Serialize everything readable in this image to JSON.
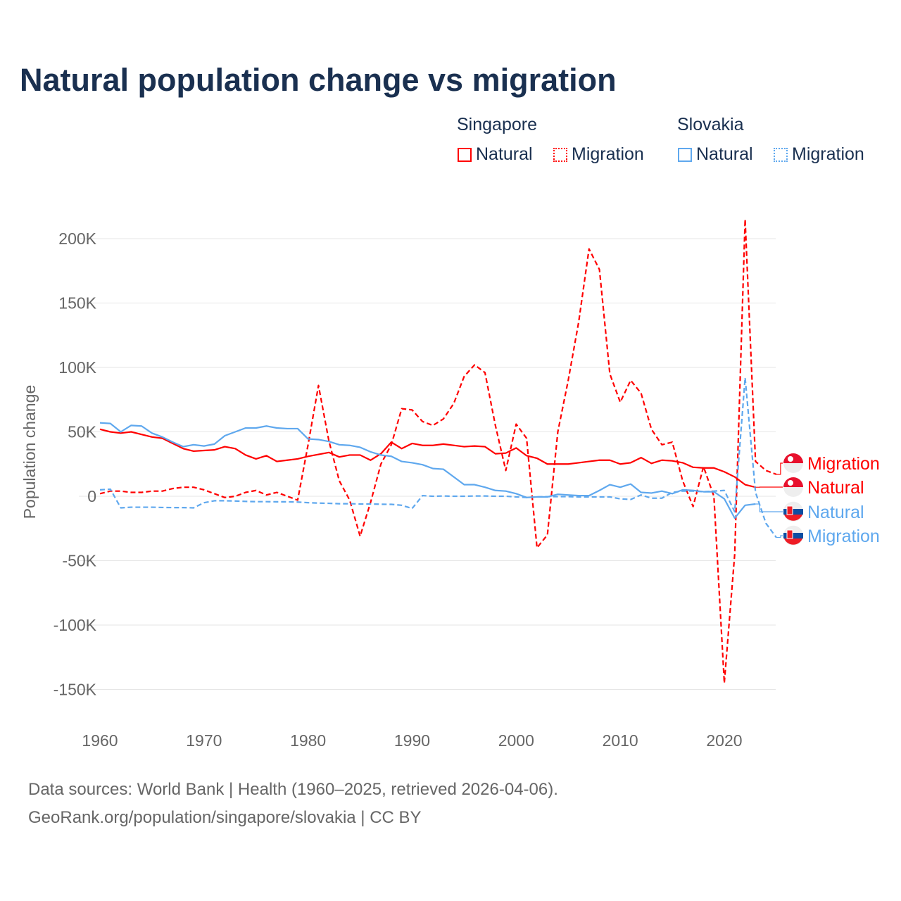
{
  "title": "Natural population change vs migration",
  "legend": {
    "groups": [
      {
        "name": "Singapore",
        "items": [
          "Natural",
          "Migration"
        ]
      },
      {
        "name": "Slovakia",
        "items": [
          "Natural",
          "Migration"
        ]
      }
    ]
  },
  "colors": {
    "singapore": "#ff0000",
    "slovakia": "#5fa8ee"
  },
  "footer": {
    "line1": "Data sources: World Bank | Health (1960–2025, retrieved 2026-04-06).",
    "line2": "GeoRank.org/population/singapore/slovakia | CC BY"
  },
  "chart_data": {
    "type": "line",
    "title": "Natural population change vs migration",
    "ylabel": "Population change",
    "xlabel": "",
    "xlim": [
      1960,
      2025
    ],
    "ylim": [
      -170000,
      220000
    ],
    "x_ticks": [
      1960,
      1970,
      1980,
      1990,
      2000,
      2010,
      2020
    ],
    "x_tick_labels": [
      "1960",
      "1970",
      "1980",
      "1990",
      "2000",
      "2010",
      "2020"
    ],
    "y_ticks": [
      -150000,
      -100000,
      -50000,
      0,
      50000,
      100000,
      150000,
      200000
    ],
    "y_tick_labels": [
      "-150K",
      "-100K",
      "-50K",
      "0",
      "50K",
      "100K",
      "150K",
      "200K"
    ],
    "grid": true,
    "start_year": 1960,
    "series": [
      {
        "name": "Singapore Natural",
        "end_label": "Migration_skip",
        "label": "Natural",
        "country": "singapore",
        "dashed": false,
        "values": [
          52,
          50,
          49,
          50,
          48,
          46,
          45,
          41,
          37,
          35,
          35.5,
          36,
          38.5,
          37,
          32,
          29,
          31.5,
          27,
          28,
          29,
          31,
          32.5,
          34,
          30.5,
          32,
          32,
          28,
          33,
          42,
          37,
          41,
          39.5,
          39.5,
          40.5,
          39.5,
          38.5,
          39,
          38.5,
          33,
          33.5,
          37.5,
          31.5,
          29.5,
          25,
          25,
          25,
          26,
          27,
          28,
          28,
          25,
          26,
          30,
          25.5,
          28,
          27.5,
          26,
          22.5,
          22,
          22,
          19,
          15,
          9,
          7
        ]
      },
      {
        "name": "Singapore Migration",
        "label": "Migration",
        "country": "singapore",
        "dashed": true,
        "values": [
          2,
          4,
          4,
          3,
          3,
          4,
          4,
          6,
          7,
          7,
          5,
          2,
          -1,
          0,
          3,
          4.5,
          1,
          3,
          0,
          -3,
          40,
          86,
          43,
          12,
          -3,
          -31,
          -5,
          25,
          40,
          68,
          67,
          58,
          55,
          60,
          72,
          93,
          102,
          96,
          55,
          20,
          56,
          45,
          -40,
          -30,
          50,
          90,
          135,
          192,
          176,
          95,
          73,
          90,
          80,
          52,
          40,
          42,
          12,
          -8,
          23,
          0,
          -145,
          -45,
          215,
          27,
          20,
          17
        ]
      },
      {
        "name": "Slovakia Natural",
        "label": "Natural",
        "country": "slovakia",
        "dashed": false,
        "values": [
          57,
          56.5,
          50,
          55,
          54.5,
          49,
          46,
          42,
          38.5,
          40,
          39,
          40.5,
          47,
          50,
          53,
          53,
          54.5,
          53,
          52.5,
          52.5,
          44.5,
          44,
          42.5,
          40,
          39.5,
          38,
          34.5,
          32,
          31,
          27,
          26,
          24.5,
          21.5,
          21,
          15,
          9,
          9,
          7,
          4.5,
          4,
          2,
          -1,
          -0.5,
          -0.5,
          1.5,
          1,
          0.5,
          0.5,
          4.5,
          9,
          7,
          9.5,
          3,
          2.5,
          4,
          2,
          5,
          4.5,
          3.5,
          3.5,
          -2,
          -17,
          -7,
          -6
        ]
      },
      {
        "name": "Slovakia Migration",
        "label": "Migration",
        "country": "slovakia",
        "dashed": true,
        "values": [
          5,
          5.5,
          -9,
          -8.5,
          -8.5,
          -8.5,
          -8.7,
          -8.8,
          -8.8,
          -9,
          -5,
          -3.5,
          -3.5,
          -3.7,
          -4,
          -4.2,
          -4.2,
          -4.3,
          -4.3,
          -4.5,
          -5,
          -5.3,
          -5.5,
          -5.8,
          -5.8,
          -6,
          -6,
          -6.2,
          -6.3,
          -7,
          -9.5,
          0.5,
          0,
          0.2,
          0,
          0,
          0.2,
          0.2,
          0,
          0,
          -0.5,
          -1,
          -0.5,
          -0.3,
          -0.3,
          -0.3,
          -0.5,
          -0.5,
          -0.5,
          -0.5,
          -2,
          -2.5,
          1,
          -1.5,
          -1.5,
          3,
          4,
          4,
          3.5,
          4,
          4.5,
          -12,
          92,
          3,
          -21,
          -32
        ]
      }
    ],
    "value_unit": "thousands",
    "end_labels": [
      {
        "text": "Migration",
        "series": 1
      },
      {
        "text": "Natural",
        "series": 0
      },
      {
        "text": "Natural",
        "series": 2
      },
      {
        "text": "Migration",
        "series": 3
      }
    ]
  }
}
